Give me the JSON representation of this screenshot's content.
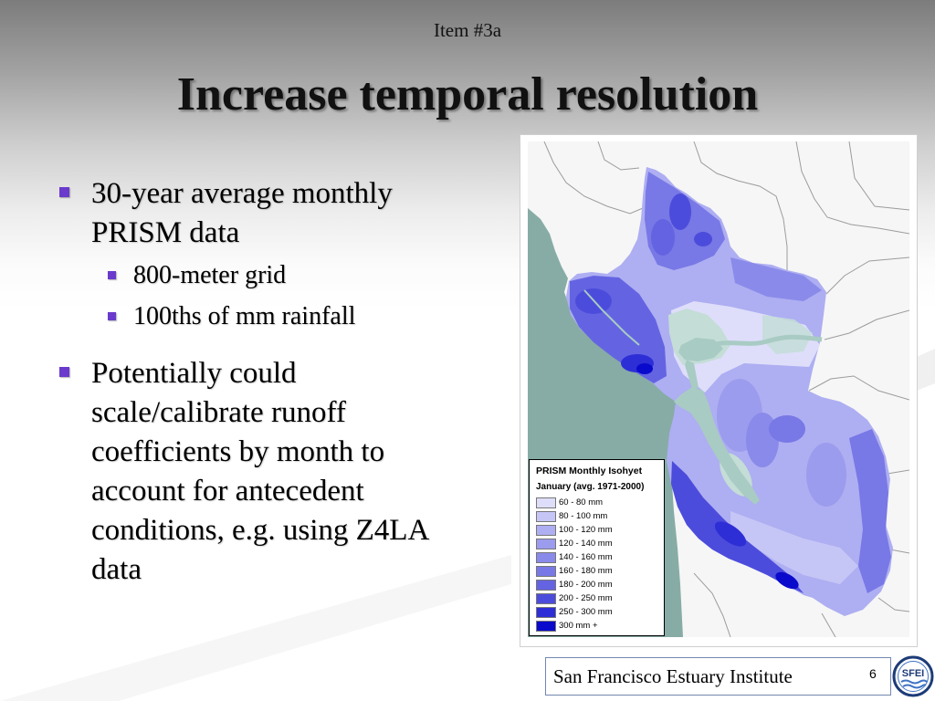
{
  "slide": {
    "item_label": "Item #3a",
    "title": "Increase temporal resolution",
    "bullets": [
      {
        "lines": [
          "30-year average monthly",
          "PRISM data"
        ],
        "sub_bullets": [
          "800-meter grid",
          "100ths of mm rainfall"
        ]
      },
      {
        "lines": [
          "Potentially could",
          "scale/calibrate runoff",
          "coefficients by month to",
          "account for antecedent",
          "conditions, e.g. using Z4LA",
          "data"
        ]
      }
    ],
    "page_number": "6"
  },
  "theme": {
    "bullet_color": "#6a3acc"
  },
  "map": {
    "legend": {
      "title": "PRISM Monthly Isohyet",
      "subtitle": "January (avg. 1971-2000)",
      "classes": [
        {
          "label": "60 - 80 mm",
          "color": "#dedefa"
        },
        {
          "label": "80 - 100 mm",
          "color": "#c6c6f6"
        },
        {
          "label": "100 - 120 mm",
          "color": "#aeaef2"
        },
        {
          "label": "120 - 140 mm",
          "color": "#9c9cee"
        },
        {
          "label": "140 - 160 mm",
          "color": "#8a8aea"
        },
        {
          "label": "160 - 180 mm",
          "color": "#7878e6"
        },
        {
          "label": "180 - 200 mm",
          "color": "#6464e2"
        },
        {
          "label": "200 - 250 mm",
          "color": "#4c4cdc"
        },
        {
          "label": "250 - 300 mm",
          "color": "#2e2ed6"
        },
        {
          "label": "300 mm +",
          "color": "#0a0acc"
        }
      ]
    },
    "colors": {
      "land": "#f6f6f6",
      "ocean": "#87aca6",
      "bay": "#a8cbc3",
      "marsh": "#c4ddd7",
      "boundary": "#9c9c9c"
    }
  },
  "footer": {
    "organization": "San Francisco Estuary Institute",
    "logo_text": "SFEI",
    "logo_color": "#1d3c78",
    "logo_wave_color": "#3f73c4"
  }
}
